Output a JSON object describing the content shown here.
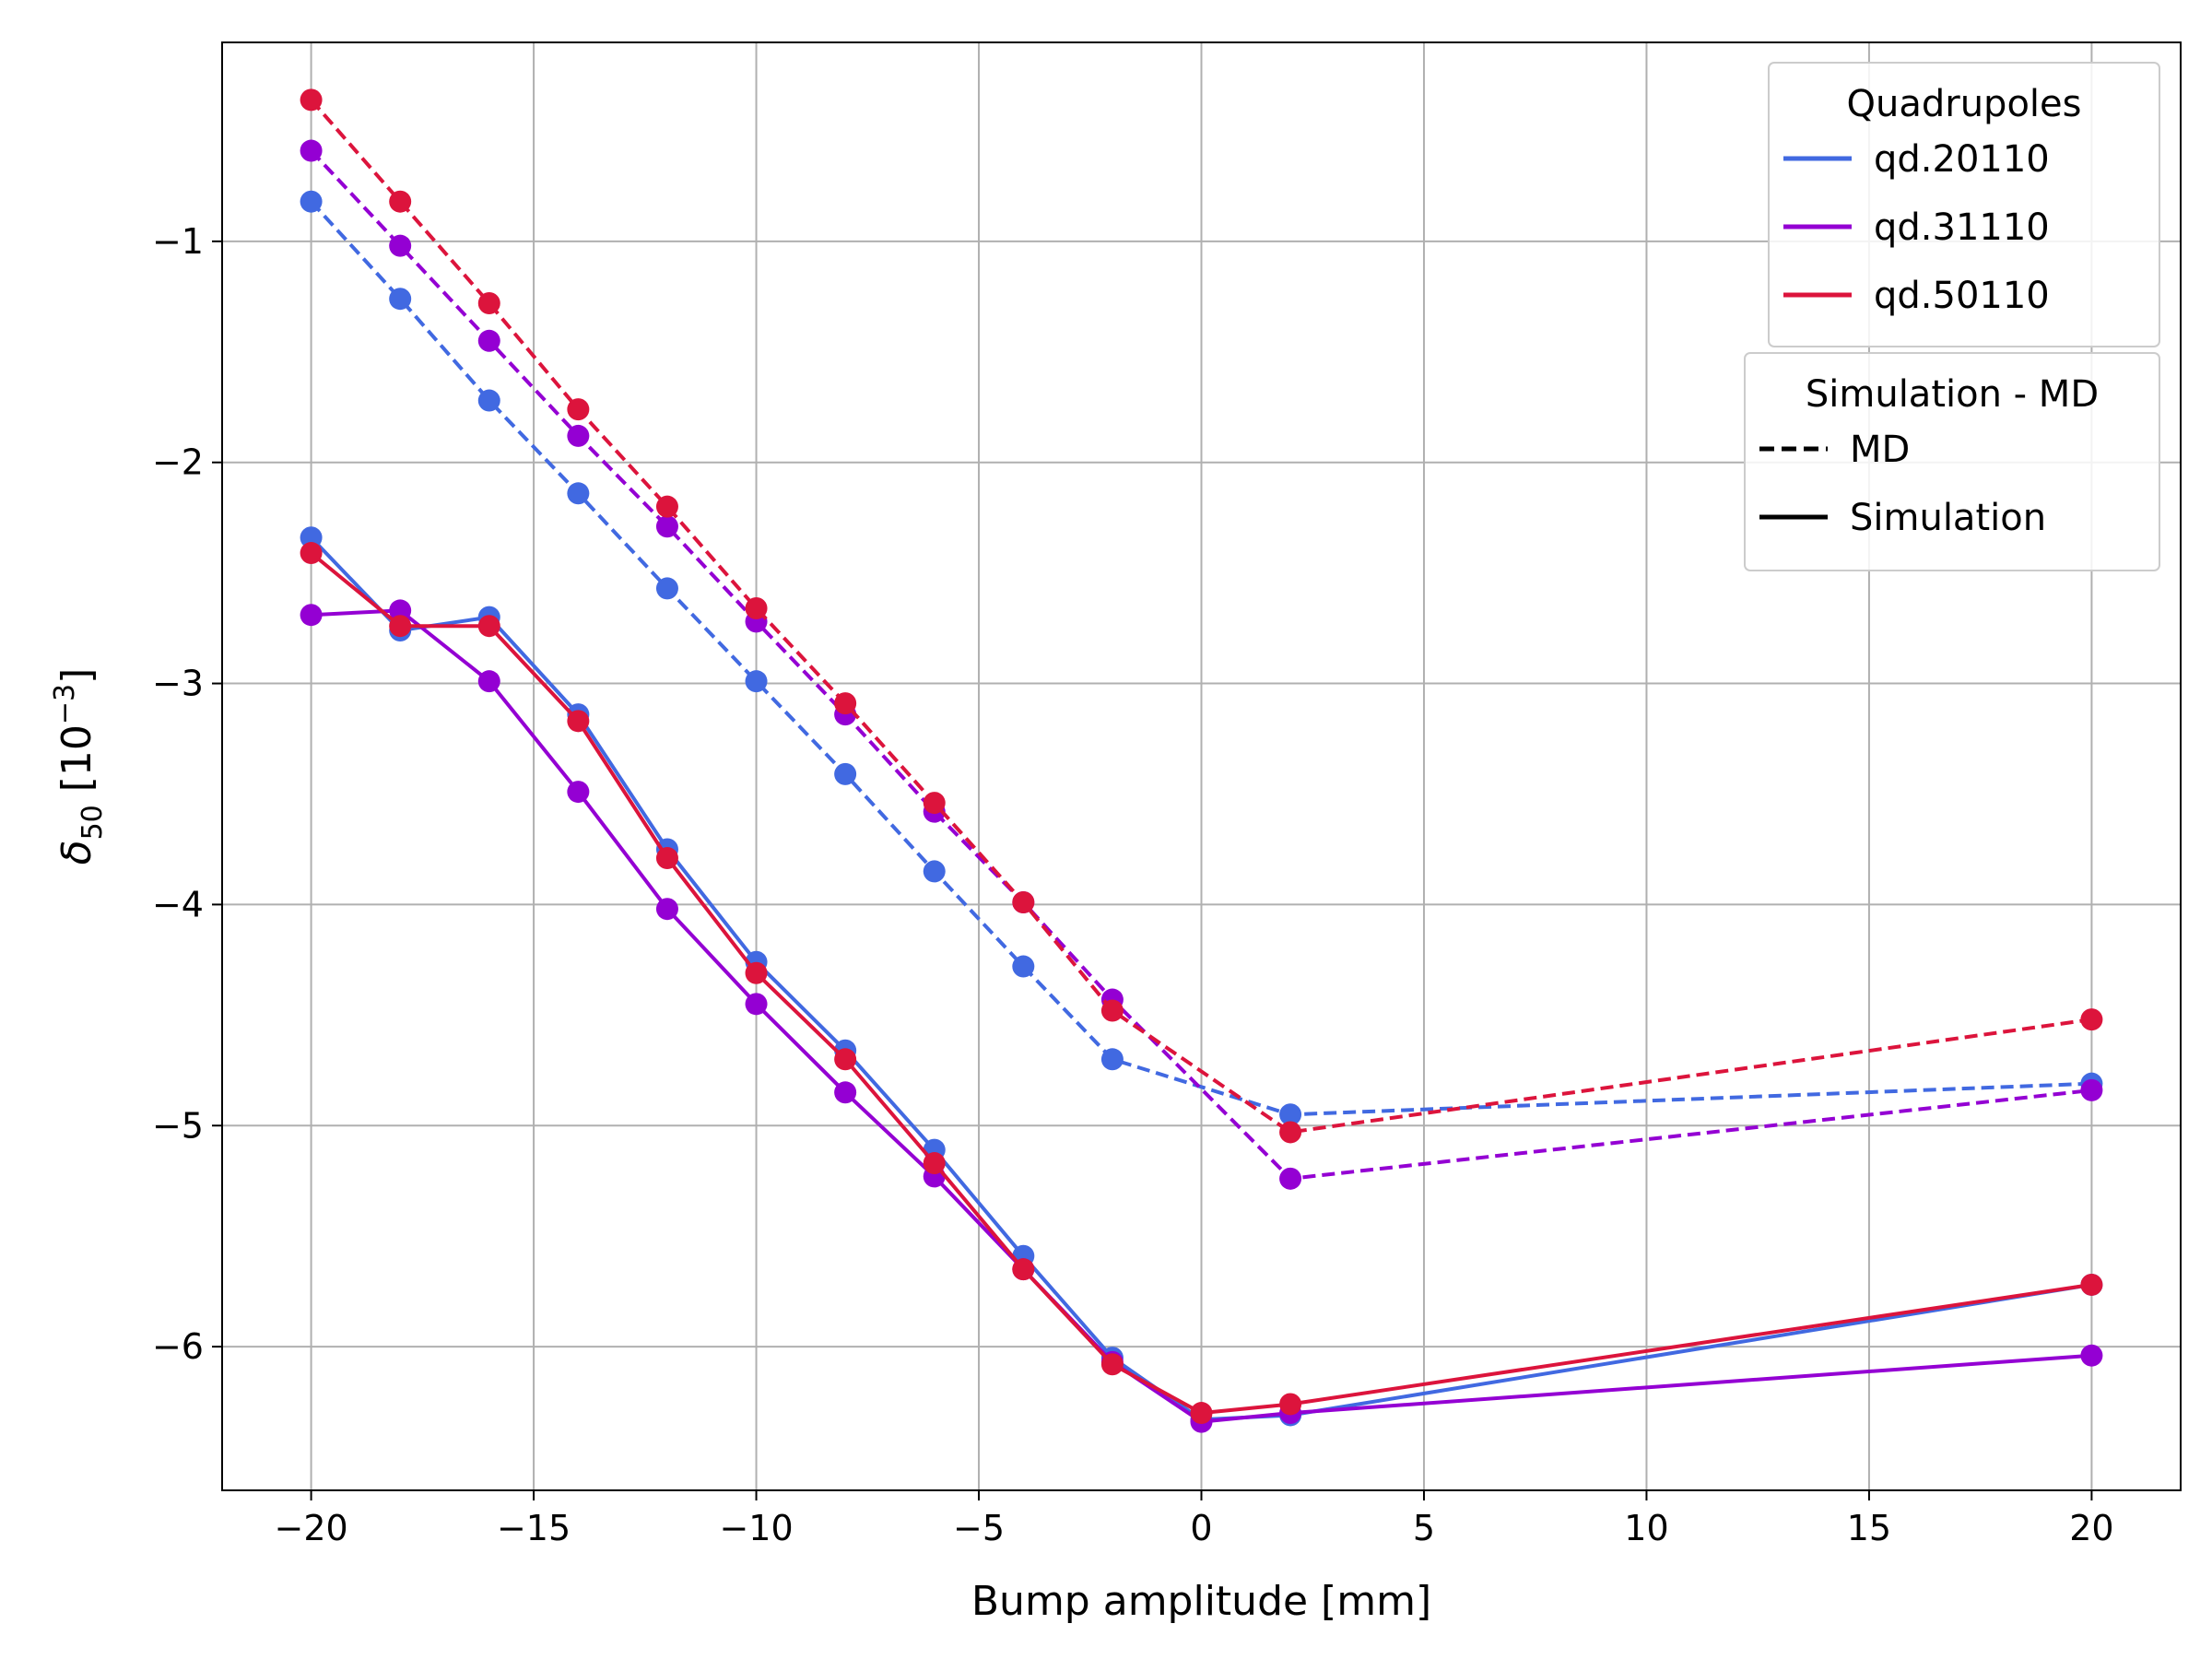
{
  "chart_data": {
    "type": "line",
    "xlabel": "Bump amplitude [mm]",
    "ylabel": {
      "symbol": "δ",
      "subscript": "50",
      "unit_prefix": " [10",
      "unit_exponent": "−3",
      "unit_suffix": "]"
    },
    "xlim": [
      -22,
      22
    ],
    "ylim": [
      -6.65,
      -0.1
    ],
    "x_ticks": [
      -20,
      -15,
      -10,
      -5,
      0,
      5,
      10,
      15,
      20
    ],
    "x_tick_labels": [
      "−20",
      "−15",
      "−10",
      "−5",
      "0",
      "5",
      "10",
      "15",
      "20"
    ],
    "y_ticks": [
      -1,
      -2,
      -3,
      -4,
      -5,
      -6
    ],
    "y_tick_labels": [
      "−1",
      "−2",
      "−3",
      "−4",
      "−5",
      "−6"
    ],
    "grid": true,
    "legend_placement": "top-right",
    "legends": [
      {
        "title": "Quadrupoles",
        "entries": [
          {
            "label": "qd.20110",
            "color": "#4169e1",
            "style": "solid"
          },
          {
            "label": "qd.31110",
            "color": "#9400d3",
            "style": "solid"
          },
          {
            "label": "qd.50110",
            "color": "#dc143c",
            "style": "solid"
          }
        ]
      },
      {
        "title": "Simulation - MD",
        "entries": [
          {
            "label": "MD",
            "color": "#000000",
            "style": "dashed"
          },
          {
            "label": "Simulation",
            "color": "#000000",
            "style": "solid"
          }
        ]
      }
    ],
    "series": [
      {
        "quadrupole": "qd.20110",
        "kind": "MD",
        "color": "#4169e1",
        "style": "dashed",
        "x": [
          -20,
          -18,
          -16,
          -14,
          -12,
          -10,
          -8,
          -6,
          -4,
          -2,
          2,
          20
        ],
        "y": [
          -0.82,
          -1.26,
          -1.72,
          -2.14,
          -2.57,
          -2.99,
          -3.41,
          -3.85,
          -4.28,
          -4.7,
          -4.95,
          -4.81
        ]
      },
      {
        "quadrupole": "qd.31110",
        "kind": "MD",
        "color": "#9400d3",
        "style": "dashed",
        "x": [
          -20,
          -18,
          -16,
          -14,
          -12,
          -10,
          -8,
          -6,
          -4,
          -2,
          2,
          20
        ],
        "y": [
          -0.59,
          -1.02,
          -1.45,
          -1.88,
          -2.29,
          -2.72,
          -3.14,
          -3.58,
          -3.99,
          -4.43,
          -5.24,
          -4.84
        ]
      },
      {
        "quadrupole": "qd.50110",
        "kind": "MD",
        "color": "#dc143c",
        "style": "dashed",
        "x": [
          -20,
          -18,
          -16,
          -14,
          -12,
          -10,
          -8,
          -6,
          -4,
          -2,
          2,
          20
        ],
        "y": [
          -0.36,
          -0.82,
          -1.28,
          -1.76,
          -2.2,
          -2.66,
          -3.09,
          -3.54,
          -3.99,
          -4.48,
          -5.03,
          -4.52
        ]
      },
      {
        "quadrupole": "qd.20110",
        "kind": "Simulation",
        "color": "#4169e1",
        "style": "solid",
        "x": [
          -20,
          -18,
          -16,
          -14,
          -12,
          -10,
          -8,
          -6,
          -4,
          -2,
          0,
          2,
          20
        ],
        "y": [
          -2.34,
          -2.76,
          -2.7,
          -3.14,
          -3.75,
          -4.26,
          -4.66,
          -5.11,
          -5.59,
          -6.05,
          -6.33,
          -6.31,
          -5.72
        ]
      },
      {
        "quadrupole": "qd.31110",
        "kind": "Simulation",
        "color": "#9400d3",
        "style": "solid",
        "x": [
          -20,
          -18,
          -16,
          -14,
          -12,
          -10,
          -8,
          -6,
          -4,
          -2,
          0,
          2,
          20
        ],
        "y": [
          -2.69,
          -2.67,
          -2.99,
          -3.49,
          -4.02,
          -4.45,
          -4.85,
          -5.23,
          -5.65,
          -6.07,
          -6.34,
          -6.3,
          -6.04
        ]
      },
      {
        "quadrupole": "qd.50110",
        "kind": "Simulation",
        "color": "#dc143c",
        "style": "solid",
        "x": [
          -20,
          -18,
          -16,
          -14,
          -12,
          -10,
          -8,
          -6,
          -4,
          -2,
          0,
          2,
          20
        ],
        "y": [
          -2.41,
          -2.74,
          -2.74,
          -3.17,
          -3.79,
          -4.31,
          -4.7,
          -5.17,
          -5.65,
          -6.08,
          -6.3,
          -6.26,
          -5.72
        ]
      }
    ]
  }
}
